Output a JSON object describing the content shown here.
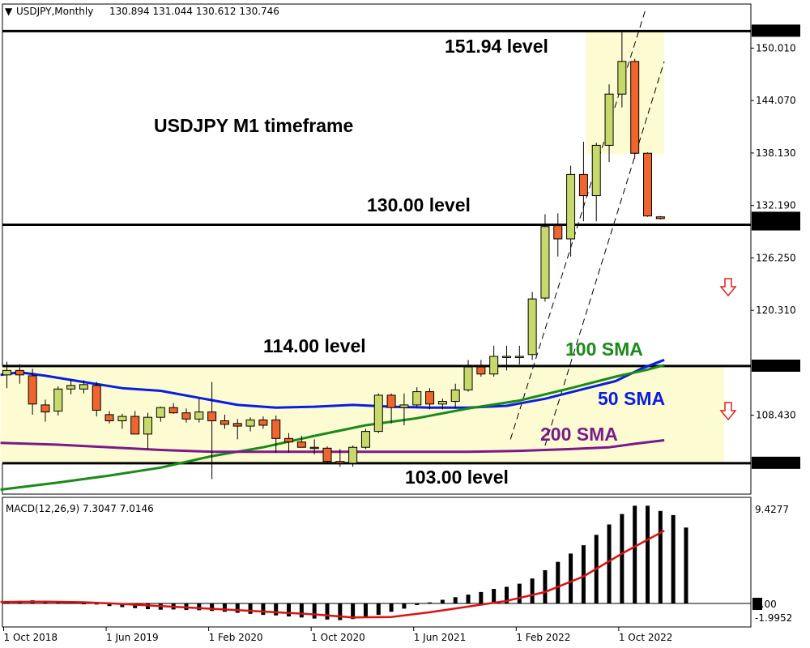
{
  "header": {
    "symbol": "USDJPY,Monthly",
    "ohlc": "130.894 131.044 130.612 130.746"
  },
  "annotations": {
    "title": "USDJPY M1 timeframe",
    "level_151": "151.94 level",
    "level_130": "130.00 level",
    "level_114": "114.00 level",
    "level_103": "103.00 level",
    "sma_100": "100 SMA",
    "sma_50": "50 SMA",
    "sma_200": "200 SMA"
  },
  "colors": {
    "bull": "#c7d96b",
    "bear": "#f0642d",
    "zone": "#fdfbd2",
    "sma50": "#0a1ee0",
    "sma100": "#1a8a1a",
    "sma200": "#7a1a8a",
    "signal": "#dd1111",
    "arrow": "#e02020"
  },
  "macd": {
    "label": "MACD(12,26,9) 7.3047 7.0146",
    "axis_labels": [
      "9.4277",
      "0.00",
      "-1.9952"
    ]
  },
  "chart_data": [
    {
      "type": "candlestick",
      "title": "USDJPY M1 timeframe",
      "ylim": [
        99.5,
        155.0
      ],
      "y_ticks": [
        150.01,
        144.07,
        138.13,
        132.19,
        126.25,
        120.31,
        108.43
      ],
      "y_tick_labels": [
        "150.010",
        "144.070",
        "138.130",
        "132.190",
        "126.250",
        "120.310",
        "108.430"
      ],
      "price_badges": [
        {
          "value": 151.94,
          "label": "151.940"
        },
        {
          "value": 130.746,
          "label": "130.746"
        },
        {
          "value": 130.0,
          "label": "130.000"
        },
        {
          "value": 114.0,
          "label": "114.000"
        },
        {
          "value": 103.0,
          "label": "103.000"
        }
      ],
      "x_labels": [
        {
          "index": 0,
          "label": "1 Oct 2018"
        },
        {
          "index": 8,
          "label": "1 Jun 2019"
        },
        {
          "index": 16,
          "label": "1 Feb 2020"
        },
        {
          "index": 24,
          "label": "1 Oct 2020"
        },
        {
          "index": 32,
          "label": "1 Jun 2021"
        },
        {
          "index": 40,
          "label": "1 Feb 2022"
        },
        {
          "index": 48,
          "label": "1 Oct 2022"
        }
      ],
      "levels": [
        151.94,
        130.0,
        114.0,
        103.0
      ],
      "zones": [
        {
          "from": 103.0,
          "to": 114.0,
          "x_start": -0.5,
          "x_end": 56
        },
        {
          "from": 138.0,
          "to": 151.94,
          "x_start": 45.2,
          "x_end": 51.3
        }
      ],
      "channel": [
        {
          "x1": 39.3,
          "y1": 105.7,
          "x2": 49.8,
          "y2": 154.2
        },
        {
          "x1": 42.0,
          "y1": 105.0,
          "x2": 51.3,
          "y2": 148.5
        }
      ],
      "ohlc": [
        [
          113.0,
          114.5,
          111.5,
          113.5
        ],
        [
          113.5,
          114.2,
          112.0,
          113.0
        ],
        [
          112.9,
          113.7,
          108.5,
          109.7
        ],
        [
          109.6,
          110.2,
          107.7,
          108.8
        ],
        [
          108.9,
          111.7,
          108.4,
          111.4
        ],
        [
          111.4,
          112.5,
          110.8,
          111.8
        ],
        [
          111.4,
          112.4,
          110.9,
          111.9
        ],
        [
          111.8,
          112.2,
          108.3,
          109.0
        ],
        [
          108.5,
          108.9,
          107.5,
          107.8
        ],
        [
          107.8,
          108.6,
          106.9,
          108.3
        ],
        [
          108.3,
          108.9,
          106.5,
          106.3
        ],
        [
          106.3,
          108.7,
          104.6,
          108.2
        ],
        [
          108.2,
          109.4,
          107.7,
          109.3
        ],
        [
          109.3,
          109.8,
          108.6,
          108.7
        ],
        [
          108.7,
          109.2,
          107.6,
          108.0
        ],
        [
          108.0,
          110.3,
          107.6,
          108.8
        ],
        [
          108.8,
          112.2,
          101.2,
          107.8
        ],
        [
          107.8,
          108.5,
          106.9,
          107.4
        ],
        [
          107.5,
          108.0,
          105.7,
          107.2
        ],
        [
          107.2,
          108.2,
          106.6,
          107.9
        ],
        [
          107.9,
          108.3,
          106.9,
          107.3
        ],
        [
          107.9,
          108.4,
          104.2,
          105.8
        ],
        [
          105.8,
          106.4,
          104.2,
          105.4
        ],
        [
          105.4,
          106.1,
          104.9,
          104.8
        ],
        [
          104.8,
          105.7,
          104.0,
          104.7
        ],
        [
          104.7,
          104.9,
          103.0,
          103.2
        ],
        [
          103.2,
          104.6,
          102.6,
          103.0
        ],
        [
          103.0,
          105.0,
          102.6,
          104.8
        ],
        [
          104.8,
          106.9,
          104.6,
          106.6
        ],
        [
          106.6,
          110.9,
          106.4,
          110.7
        ],
        [
          110.7,
          110.9,
          107.5,
          109.3
        ],
        [
          109.3,
          110.9,
          107.3,
          109.6
        ],
        [
          109.6,
          111.6,
          109.4,
          111.1
        ],
        [
          111.1,
          111.5,
          109.1,
          109.7
        ],
        [
          109.7,
          110.3,
          109.1,
          110.0
        ],
        [
          110.0,
          112.0,
          109.2,
          111.3
        ],
        [
          111.3,
          114.7,
          111.1,
          113.9
        ],
        [
          113.9,
          114.7,
          112.8,
          113.1
        ],
        [
          113.1,
          116.3,
          112.8,
          115.1
        ],
        [
          115.1,
          116.3,
          113.5,
          115.1
        ],
        [
          115.1,
          116.3,
          114.2,
          115.1
        ],
        [
          115.3,
          122.4,
          114.7,
          121.6
        ],
        [
          121.7,
          131.2,
          121.3,
          129.8
        ],
        [
          129.9,
          131.3,
          126.4,
          128.4
        ],
        [
          128.4,
          136.7,
          126.4,
          135.7
        ],
        [
          135.7,
          139.4,
          130.4,
          133.3
        ],
        [
          133.3,
          139.3,
          130.4,
          139.0
        ],
        [
          139.0,
          145.9,
          137.1,
          144.8
        ],
        [
          144.8,
          151.9,
          143.3,
          148.5
        ],
        [
          148.5,
          148.8,
          137.5,
          138.1
        ],
        [
          138.1,
          138.2,
          130.9,
          131.0
        ],
        [
          130.9,
          131.0,
          130.6,
          130.7
        ]
      ],
      "series": [
        {
          "name": "50 SMA",
          "x": [
            -0.5,
            1,
            3,
            6,
            9,
            12,
            15,
            18,
            21,
            24,
            27,
            30,
            33,
            36,
            39,
            42,
            45,
            47.5,
            49.5,
            51.3
          ],
          "values": [
            113.0,
            113.3,
            112.9,
            112.2,
            111.5,
            111.2,
            110.4,
            109.6,
            109.3,
            109.4,
            109.6,
            109.4,
            109.3,
            109.3,
            109.5,
            110.3,
            111.4,
            112.3,
            113.7,
            114.7
          ]
        },
        {
          "name": "100 SMA",
          "x": [
            -0.5,
            4,
            8,
            12,
            16,
            20,
            24,
            28,
            32,
            36,
            40,
            44,
            47.5,
            50,
            51.3
          ],
          "values": [
            100.0,
            100.8,
            101.6,
            102.5,
            103.8,
            104.8,
            106.1,
            107.3,
            108.1,
            109.2,
            110.1,
            111.5,
            112.8,
            113.6,
            114.1
          ]
        },
        {
          "name": "200 SMA",
          "x": [
            -0.5,
            4,
            8,
            12,
            16,
            20,
            24,
            28,
            32,
            36,
            40,
            44,
            47,
            49,
            51.3
          ],
          "values": [
            105.3,
            105.1,
            104.8,
            104.5,
            104.3,
            104.3,
            104.3,
            104.3,
            104.3,
            104.3,
            104.4,
            104.6,
            104.8,
            105.2,
            105.6
          ]
        }
      ]
    },
    {
      "type": "bar",
      "title": "MACD(12,26,9) 7.3047 7.0146",
      "ylim": [
        -1.9952,
        9.4277
      ],
      "values": [
        0.2,
        0.25,
        0.3,
        0.2,
        0.1,
        0.05,
        0.0,
        -0.1,
        -0.25,
        -0.35,
        -0.45,
        -0.55,
        -0.6,
        -0.58,
        -0.62,
        -0.65,
        -0.72,
        -0.8,
        -0.9,
        -1.0,
        -1.1,
        -1.15,
        -1.25,
        -1.35,
        -1.45,
        -1.55,
        -1.6,
        -1.5,
        -1.35,
        -1.1,
        -0.8,
        -0.5,
        -0.15,
        0.1,
        0.35,
        0.6,
        0.85,
        1.1,
        1.4,
        1.6,
        1.9,
        2.4,
        3.2,
        4.0,
        4.8,
        5.6,
        6.6,
        7.6,
        8.6,
        9.4,
        9.4,
        8.9,
        8.5,
        7.3
      ],
      "signal": {
        "name": "Signal",
        "x": [
          -0.5,
          3,
          6,
          9,
          12,
          15,
          18,
          21,
          24,
          27,
          30,
          33,
          36,
          39,
          42,
          45,
          48,
          51.3
        ],
        "values": [
          0.15,
          0.18,
          0.12,
          -0.05,
          -0.25,
          -0.45,
          -0.65,
          -0.85,
          -1.05,
          -1.35,
          -1.3,
          -0.85,
          -0.3,
          0.25,
          1.1,
          2.6,
          4.8,
          7.0
        ]
      }
    }
  ]
}
